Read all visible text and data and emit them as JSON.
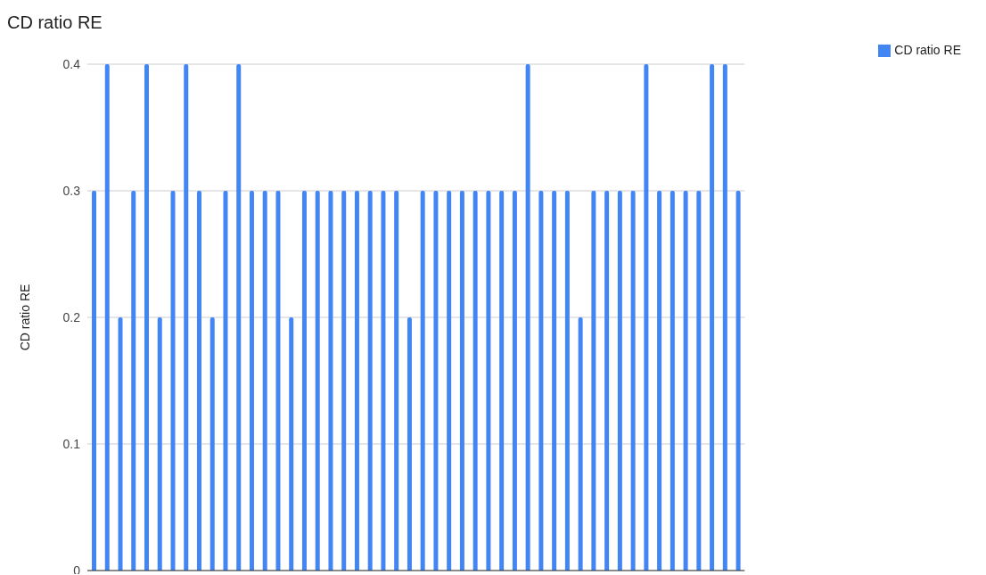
{
  "chart_data": {
    "type": "bar",
    "title": "CD ratio RE",
    "ylabel": "CD ratio RE",
    "categories": [
      null,
      null,
      null,
      null,
      null,
      null,
      null,
      null,
      null,
      null,
      null,
      null,
      null,
      null,
      null,
      null,
      null,
      null,
      null,
      null,
      null,
      null,
      null,
      null,
      null,
      null,
      null,
      null,
      null,
      null,
      null,
      null,
      null,
      null,
      null,
      null,
      null,
      null,
      null,
      null,
      null,
      null,
      null,
      null,
      null,
      null,
      null,
      null,
      null,
      null
    ],
    "series": [
      {
        "name": "CD ratio RE",
        "color": "#4285f4",
        "values": [
          0.3,
          0.4,
          0.2,
          0.3,
          0.4,
          0.2,
          0.3,
          0.4,
          0.3,
          0.2,
          0.3,
          0.4,
          0.3,
          0.3,
          0.3,
          0.2,
          0.3,
          0.3,
          0.3,
          0.3,
          0.3,
          0.3,
          0.3,
          0.3,
          0.2,
          0.3,
          0.3,
          0.3,
          0.3,
          0.3,
          0.3,
          0.3,
          0.3,
          0.4,
          0.3,
          0.3,
          0.3,
          0.2,
          0.3,
          0.3,
          0.3,
          0.3,
          0.4,
          0.3,
          0.3,
          0.3,
          0.3,
          0.4,
          0.4,
          0.3
        ]
      }
    ],
    "ylim": [
      0,
      0.4
    ],
    "yticks": [
      0,
      0.1,
      0.2,
      0.3,
      0.4
    ],
    "grid": "y",
    "legend": "top right",
    "tick_labels": "y"
  }
}
